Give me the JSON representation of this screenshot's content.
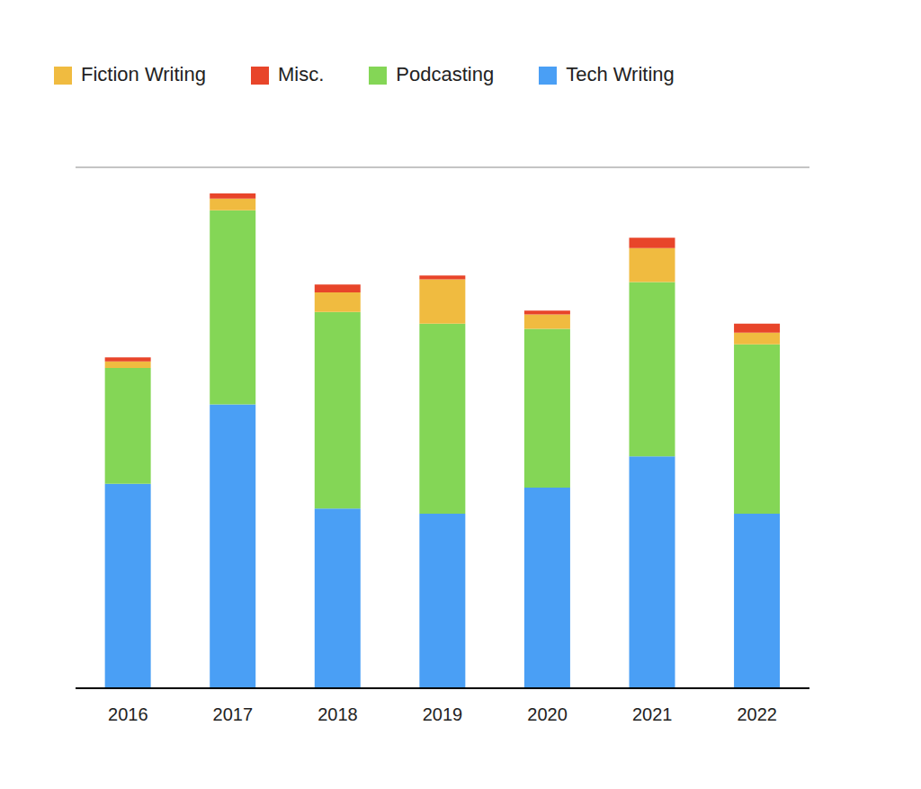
{
  "chart_data": {
    "type": "bar",
    "stacked": true,
    "categories": [
      "2016",
      "2017",
      "2018",
      "2019",
      "2020",
      "2021",
      "2022"
    ],
    "series": [
      {
        "name": "Tech Writing",
        "color": "#4a9ff5",
        "values": [
          157,
          218,
          138,
          134,
          154,
          178,
          134
        ]
      },
      {
        "name": "Podcasting",
        "color": "#84d656",
        "values": [
          89,
          149,
          151,
          146,
          122,
          134,
          130
        ]
      },
      {
        "name": "Fiction Writing",
        "color": "#f0bb40",
        "values": [
          5,
          9,
          15,
          34,
          11,
          26,
          9
        ]
      },
      {
        "name": "Misc.",
        "color": "#e8452a",
        "values": [
          3,
          4,
          6,
          3,
          3,
          8,
          7
        ]
      }
    ],
    "ylim": [
      0,
      400
    ],
    "yticks": [
      0,
      100,
      200,
      300,
      400
    ],
    "grid": true,
    "legend": "top",
    "tick_labels": "x"
  }
}
